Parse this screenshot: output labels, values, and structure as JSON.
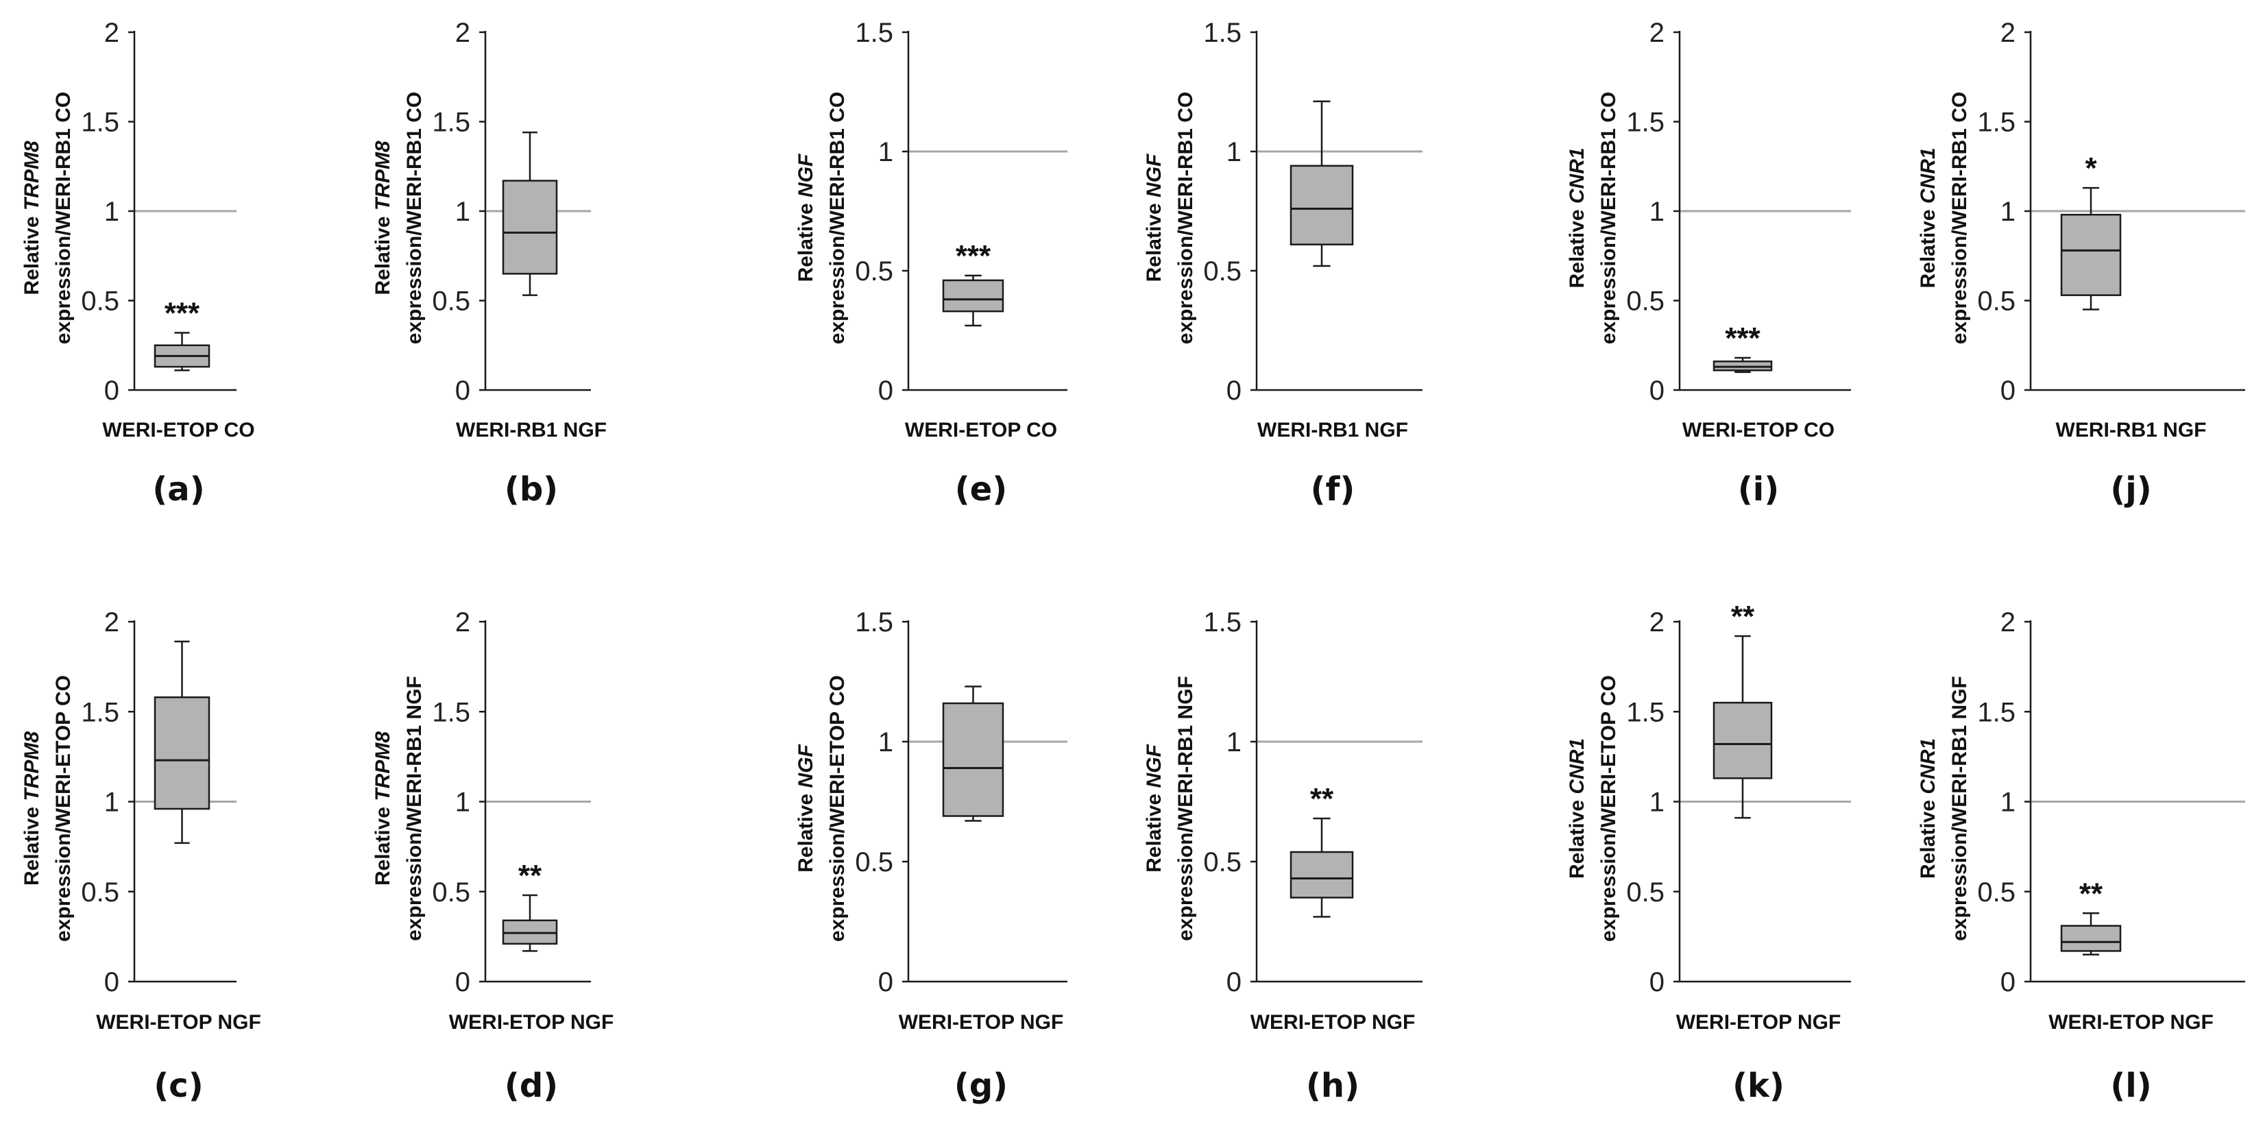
{
  "chart_data": [
    {
      "id": "a",
      "type": "box",
      "panel_label": "(a)",
      "xlabel": "WERI-ETOP CO",
      "ylabel": [
        "Relative |TRPM8|",
        "expression/WERI-RB1 CO"
      ],
      "ylim": [
        0,
        2
      ],
      "ticks": [
        "0",
        "0.5",
        "1",
        "1.5",
        "2"
      ],
      "tick_values": [
        0,
        0.5,
        1,
        1.5,
        2
      ],
      "reference_line": 1,
      "box": {
        "min": 0.11,
        "q1": 0.13,
        "median": 0.19,
        "q3": 0.25,
        "max": 0.32
      },
      "significance": "***"
    },
    {
      "id": "b",
      "type": "box",
      "panel_label": "(b)",
      "xlabel": "WERI-RB1 NGF",
      "ylabel": [
        "Relative |TRPM8|",
        "expression/WERI-RB1 CO"
      ],
      "ylim": [
        0,
        2
      ],
      "ticks": [
        "0",
        "0.5",
        "1",
        "1.5",
        "2"
      ],
      "tick_values": [
        0,
        0.5,
        1,
        1.5,
        2
      ],
      "reference_line": 1,
      "box": {
        "min": 0.53,
        "q1": 0.65,
        "median": 0.88,
        "q3": 1.17,
        "max": 1.44
      },
      "significance": ""
    },
    {
      "id": "e",
      "type": "box",
      "panel_label": "(e)",
      "xlabel": "WERI-ETOP CO",
      "ylabel": [
        "Relative |NGF|",
        "expression/WERI-RB1 CO"
      ],
      "ylim": [
        0,
        1.5
      ],
      "ticks": [
        "0",
        "0.5",
        "1",
        "1.5"
      ],
      "tick_values": [
        0,
        0.5,
        1,
        1.5
      ],
      "reference_line": 1,
      "box": {
        "min": 0.27,
        "q1": 0.33,
        "median": 0.38,
        "q3": 0.46,
        "max": 0.48
      },
      "significance": "***"
    },
    {
      "id": "f",
      "type": "box",
      "panel_label": "(f)",
      "xlabel": "WERI-RB1 NGF",
      "ylabel": [
        "Relative |NGF|",
        "expression/WERI-RB1 CO"
      ],
      "ylim": [
        0,
        1.5
      ],
      "ticks": [
        "0",
        "0.5",
        "1",
        "1.5"
      ],
      "tick_values": [
        0,
        0.5,
        1,
        1.5
      ],
      "reference_line": 1,
      "box": {
        "min": 0.52,
        "q1": 0.61,
        "median": 0.76,
        "q3": 0.94,
        "max": 1.21
      },
      "significance": ""
    },
    {
      "id": "i",
      "type": "box",
      "panel_label": "(i)",
      "xlabel": "WERI-ETOP CO",
      "ylabel": [
        "Relative |CNR1|",
        "expression/WERI-RB1 CO"
      ],
      "ylim": [
        0,
        2
      ],
      "ticks": [
        "0",
        "0.5",
        "1",
        "1.5",
        "2"
      ],
      "tick_values": [
        0,
        0.5,
        1,
        1.5,
        2
      ],
      "reference_line": 1,
      "box": {
        "min": 0.1,
        "q1": 0.11,
        "median": 0.13,
        "q3": 0.16,
        "max": 0.18
      },
      "significance": "***"
    },
    {
      "id": "j",
      "type": "box",
      "panel_label": "(j)",
      "xlabel": "WERI-RB1 NGF",
      "ylabel": [
        "Relative |CNR1|",
        "expression/WERI-RB1 CO"
      ],
      "ylim": [
        0,
        2
      ],
      "ticks": [
        "0",
        "0.5",
        "1",
        "1.5",
        "2"
      ],
      "tick_values": [
        0,
        0.5,
        1,
        1.5,
        2
      ],
      "reference_line": 1,
      "box": {
        "min": 0.45,
        "q1": 0.53,
        "median": 0.78,
        "q3": 0.98,
        "max": 1.13
      },
      "significance": "*"
    },
    {
      "id": "c",
      "type": "box",
      "panel_label": "(c)",
      "xlabel": "WERI-ETOP NGF",
      "ylabel": [
        "Relative |TRPM8|",
        "expression/WERI-ETOP CO"
      ],
      "ylim": [
        0,
        2
      ],
      "ticks": [
        "0",
        "0.5",
        "1",
        "1.5",
        "2"
      ],
      "tick_values": [
        0,
        0.5,
        1,
        1.5,
        2
      ],
      "reference_line": 1,
      "box": {
        "min": 0.77,
        "q1": 0.96,
        "median": 1.23,
        "q3": 1.58,
        "max": 1.89
      },
      "significance": ""
    },
    {
      "id": "d",
      "type": "box",
      "panel_label": "(d)",
      "xlabel": "WERI-ETOP NGF",
      "ylabel": [
        "Relative |TRPM8|",
        "expression/WERI-RB1 NGF"
      ],
      "ylim": [
        0,
        2
      ],
      "ticks": [
        "0",
        "0.5",
        "1",
        "1.5",
        "2"
      ],
      "tick_values": [
        0,
        0.5,
        1,
        1.5,
        2
      ],
      "reference_line": 1,
      "box": {
        "min": 0.17,
        "q1": 0.21,
        "median": 0.27,
        "q3": 0.34,
        "max": 0.48
      },
      "significance": "**"
    },
    {
      "id": "g",
      "type": "box",
      "panel_label": "(g)",
      "xlabel": "WERI-ETOP NGF",
      "ylabel": [
        "Relative |NGF|",
        "expression/WERI-ETOP CO"
      ],
      "ylim": [
        0,
        1.5
      ],
      "ticks": [
        "0",
        "0.5",
        "1",
        "1.5"
      ],
      "tick_values": [
        0,
        0.5,
        1,
        1.5
      ],
      "reference_line": 1,
      "box": {
        "min": 0.67,
        "q1": 0.69,
        "median": 0.89,
        "q3": 1.16,
        "max": 1.23
      },
      "significance": ""
    },
    {
      "id": "h",
      "type": "box",
      "panel_label": "(h)",
      "xlabel": "WERI-ETOP NGF",
      "ylabel": [
        "Relative |NGF|",
        "expression/WERI-RB1 NGF"
      ],
      "ylim": [
        0,
        1.5
      ],
      "ticks": [
        "0",
        "0.5",
        "1",
        "1.5"
      ],
      "tick_values": [
        0,
        0.5,
        1,
        1.5
      ],
      "reference_line": 1,
      "box": {
        "min": 0.27,
        "q1": 0.35,
        "median": 0.43,
        "q3": 0.54,
        "max": 0.68
      },
      "significance": "**"
    },
    {
      "id": "k",
      "type": "box",
      "panel_label": "(k)",
      "xlabel": "WERI-ETOP NGF",
      "ylabel": [
        "Relative |CNR1|",
        "expression/WERI-ETOP CO"
      ],
      "ylim": [
        0,
        2
      ],
      "ticks": [
        "0",
        "0.5",
        "1",
        "1.5",
        "2"
      ],
      "tick_values": [
        0,
        0.5,
        1,
        1.5,
        2
      ],
      "reference_line": 1,
      "box": {
        "min": 0.91,
        "q1": 1.13,
        "median": 1.32,
        "q3": 1.55,
        "max": 1.92
      },
      "significance": "**"
    },
    {
      "id": "l",
      "type": "box",
      "panel_label": "(l)",
      "xlabel": "WERI-ETOP NGF",
      "ylabel": [
        "Relative |CNR1|",
        "expression/WERI-RB1 NGF"
      ],
      "ylim": [
        0,
        2
      ],
      "ticks": [
        "0",
        "0.5",
        "1",
        "1.5",
        "2"
      ],
      "tick_values": [
        0,
        0.5,
        1,
        1.5,
        2
      ],
      "reference_line": 1,
      "box": {
        "min": 0.15,
        "q1": 0.17,
        "median": 0.22,
        "q3": 0.31,
        "max": 0.38
      },
      "significance": "**"
    }
  ],
  "colors": {
    "box_fill": "#b3b3b3",
    "stroke": "#1a1a1a",
    "reference_line": "#a6a6a6"
  }
}
